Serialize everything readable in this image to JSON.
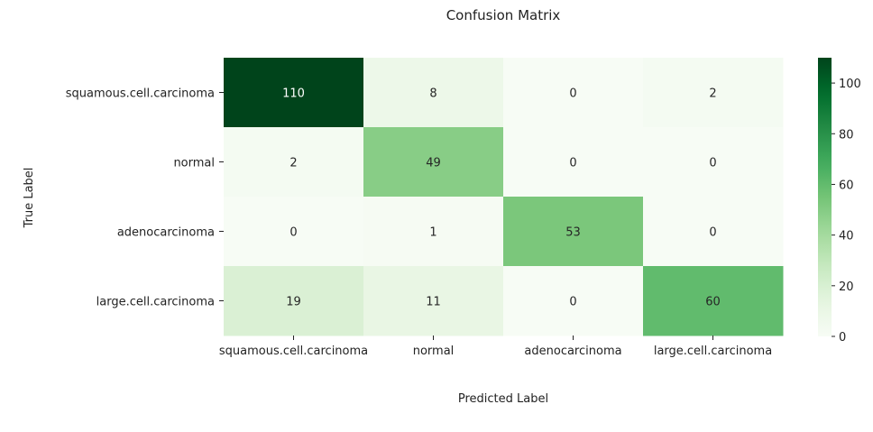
{
  "chart_data": {
    "type": "heatmap",
    "title": "Confusion Matrix",
    "xlabel": "Predicted Label",
    "ylabel": "True Label",
    "rows": [
      "squamous.cell.carcinoma",
      "normal",
      "adenocarcinoma",
      "large.cell.carcinoma"
    ],
    "columns": [
      "squamous.cell.carcinoma",
      "normal",
      "adenocarcinoma",
      "large.cell.carcinoma"
    ],
    "values": [
      [
        110,
        8,
        0,
        2
      ],
      [
        2,
        49,
        0,
        0
      ],
      [
        0,
        1,
        53,
        0
      ],
      [
        19,
        11,
        0,
        60
      ]
    ],
    "colorbar": {
      "min": 0,
      "max": 110,
      "ticks": [
        0,
        20,
        40,
        60,
        80,
        100
      ]
    },
    "colormap": "Greens",
    "colors": {
      "low": "#f7fcf5",
      "high": "#00441b"
    }
  }
}
